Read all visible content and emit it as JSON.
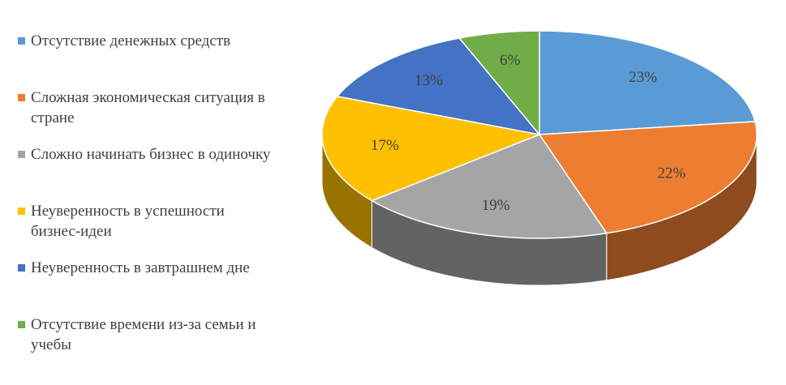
{
  "chart_data": {
    "type": "pie3d",
    "categories": [
      "Отсутствие денежных средств",
      "Сложная экономическая ситуация в стране",
      "Сложно начинать бизнес в одиночку",
      "Неуверенность в успешности бизнес-идеи",
      "Неуверенность в завтрашнем дне",
      "Отсутствие времени из-за семьи и учебы"
    ],
    "values": [
      23,
      22,
      19,
      17,
      13,
      6
    ],
    "value_labels": [
      "23%",
      "22%",
      "19%",
      "17%",
      "13%",
      "6%"
    ],
    "colors": [
      "#5b9bd5",
      "#ed7d31",
      "#a5a5a5",
      "#ffc000",
      "#4472c4",
      "#70ad47"
    ],
    "legend": "left"
  }
}
